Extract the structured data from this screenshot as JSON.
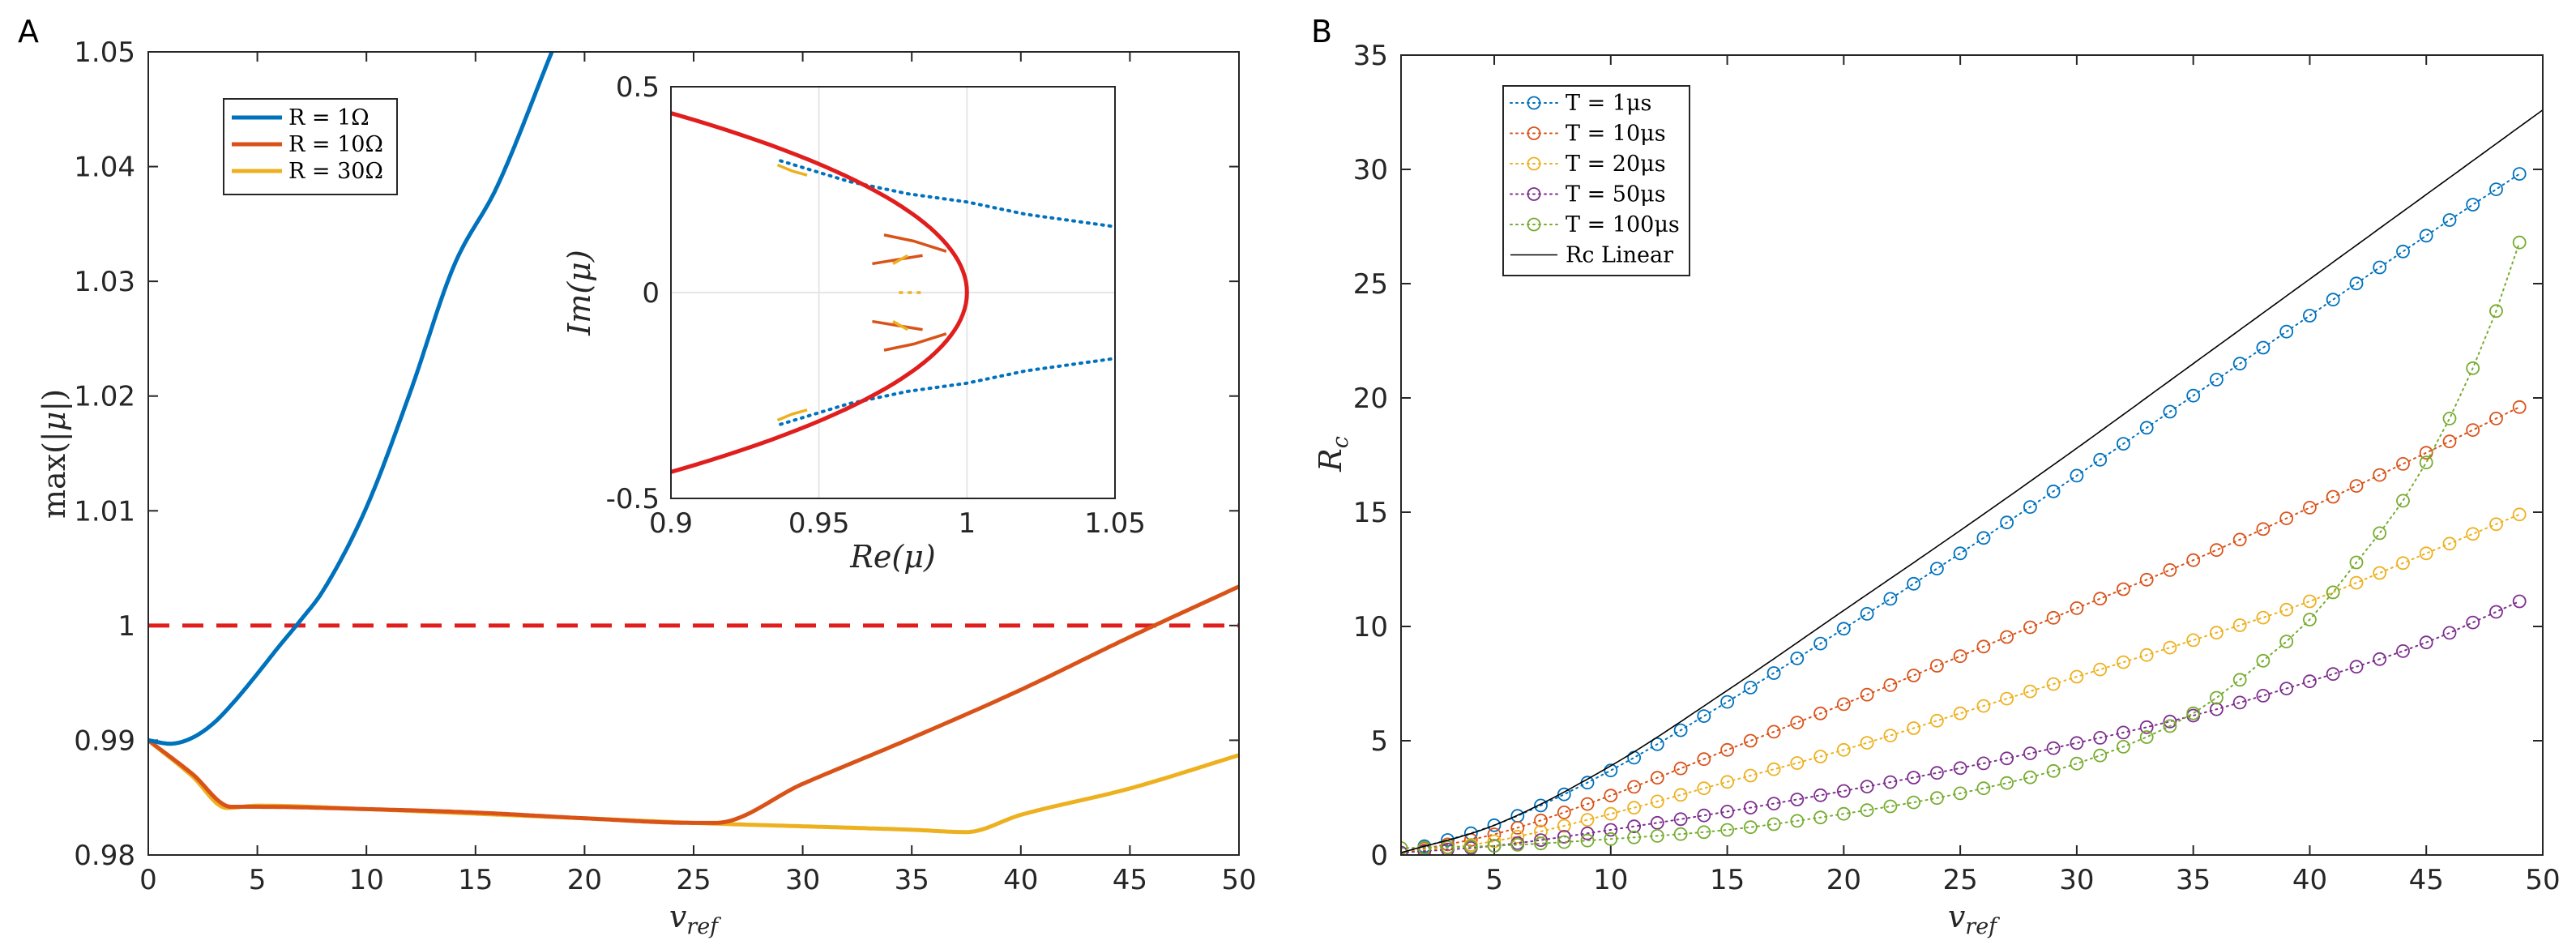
{
  "chart_data": [
    {
      "panel": "A",
      "type": "line",
      "xlabel": "v_ref",
      "ylabel": "max(|μ|)",
      "xlim": [
        0,
        50
      ],
      "ylim": [
        0.98,
        1.05
      ],
      "xticks": [
        "0",
        "5",
        "10",
        "15",
        "20",
        "25",
        "30",
        "35",
        "40",
        "45",
        "50"
      ],
      "yticks": [
        "0.98",
        "0.99",
        "1",
        "1.01",
        "1.02",
        "1.03",
        "1.04",
        "1.05"
      ],
      "threshold": {
        "y": 1.0,
        "color": "#e01e1e",
        "style": "dashed"
      },
      "legend": {
        "placement": "top-left",
        "entries": [
          "R = 1Ω",
          "R = 10Ω",
          "R = 30Ω"
        ]
      },
      "series": [
        {
          "name": "R = 1Ω",
          "color": "#0072bd",
          "x": [
            0,
            1,
            2,
            3,
            4,
            5,
            6,
            7,
            8,
            10,
            12,
            14,
            16,
            18.5
          ],
          "y": [
            0.99,
            0.9897,
            0.9902,
            0.9915,
            0.9935,
            0.9958,
            0.9982,
            1.0005,
            1.003,
            1.0103,
            1.0203,
            1.0313,
            1.0383,
            1.05
          ]
        },
        {
          "name": "R = 10Ω",
          "color": "#d95319",
          "x": [
            0,
            2,
            3.8,
            5,
            10,
            15,
            20,
            25,
            26,
            30,
            35,
            40,
            45,
            50
          ],
          "y": [
            0.99,
            0.9871,
            0.9842,
            0.9842,
            0.984,
            0.9837,
            0.9832,
            0.9828,
            0.9828,
            0.9862,
            0.9902,
            0.9944,
            0.999,
            1.0034
          ]
        },
        {
          "name": "R = 30Ω",
          "color": "#edb120",
          "x": [
            0,
            2,
            3.6,
            5,
            10,
            15,
            20,
            25,
            30,
            35,
            37.5,
            40,
            45,
            50
          ],
          "y": [
            0.99,
            0.9869,
            0.9841,
            0.9843,
            0.984,
            0.9836,
            0.9832,
            0.9828,
            0.9825,
            0.9822,
            0.982,
            0.9835,
            0.9858,
            0.9887
          ]
        }
      ],
      "inset": {
        "xlabel": "Re(μ)",
        "ylabel": "Im(μ)",
        "xlim": [
          0.9,
          1.05
        ],
        "ylim": [
          -0.5,
          0.5
        ],
        "xticks": [
          "0.9",
          "0.95",
          "1",
          "1.05"
        ],
        "yticks": [
          "-0.5",
          "0",
          "0.5"
        ],
        "unit_circle": {
          "color": "#e01e1e"
        },
        "branches": [
          {
            "name": "R = 1Ω",
            "color": "#0072bd",
            "style": "dotted",
            "x": [
              0.937,
              0.96,
              0.98,
              1.0,
              1.02,
              1.05
            ],
            "y": [
              0.32,
              0.27,
              0.24,
              0.22,
              0.19,
              0.16
            ]
          },
          {
            "name": "R = 10Ω",
            "color": "#d95319",
            "style": "solid",
            "x": [
              0.972,
              0.982,
              0.993
            ],
            "y": [
              0.14,
              0.125,
              0.1
            ]
          },
          {
            "name": "R = 30Ω",
            "color": "#edb120",
            "style": "solid",
            "x": [
              0.936,
              0.941,
              0.946
            ],
            "y": [
              0.31,
              0.295,
              0.285
            ]
          }
        ]
      }
    },
    {
      "panel": "B",
      "type": "line",
      "xlabel": "v_ref",
      "ylabel": "R_c",
      "xlim": [
        1,
        50
      ],
      "ylim": [
        0,
        35
      ],
      "xticks": [
        "5",
        "10",
        "15",
        "20",
        "25",
        "30",
        "35",
        "40",
        "45",
        "50"
      ],
      "yticks": [
        "0",
        "5",
        "10",
        "15",
        "20",
        "25",
        "30",
        "35"
      ],
      "legend": {
        "placement": "top-left",
        "entries": [
          "T = 1μs",
          "T = 10μs",
          "T = 20μs",
          "T = 50μs",
          "T = 100μs",
          "Rc Linear"
        ]
      },
      "series": [
        {
          "name": "T = 1μs",
          "color": "#0072bd",
          "style": "dotted-circle",
          "x": [
            1,
            5,
            10,
            15,
            20,
            25,
            30,
            35,
            40,
            45,
            49
          ],
          "y": [
            0.1,
            1.3,
            3.7,
            6.7,
            9.9,
            13.2,
            16.6,
            20.1,
            23.6,
            27.1,
            29.8
          ]
        },
        {
          "name": "T = 10μs",
          "color": "#d95319",
          "style": "dotted-circle",
          "x": [
            1,
            5,
            10,
            15,
            20,
            25,
            30,
            35,
            40,
            45,
            49
          ],
          "y": [
            0.1,
            0.9,
            2.6,
            4.6,
            6.6,
            8.7,
            10.8,
            12.9,
            15.2,
            17.6,
            19.6
          ]
        },
        {
          "name": "T = 20μs",
          "color": "#edb120",
          "style": "dotted-circle",
          "x": [
            1,
            5,
            10,
            15,
            20,
            25,
            30,
            35,
            40,
            45,
            49
          ],
          "y": [
            0.1,
            0.6,
            1.8,
            3.2,
            4.6,
            6.2,
            7.8,
            9.4,
            11.1,
            13.2,
            14.9
          ]
        },
        {
          "name": "T = 50μs",
          "color": "#7e2f8e",
          "style": "dotted-circle",
          "x": [
            1,
            5,
            10,
            15,
            20,
            25,
            30,
            35,
            40,
            45,
            49
          ],
          "y": [
            0.1,
            0.4,
            1.1,
            1.9,
            2.8,
            3.8,
            4.9,
            6.1,
            7.6,
            9.3,
            11.1
          ]
        },
        {
          "name": "T = 100μs",
          "color": "#77ac30",
          "style": "dotted-circle",
          "x": [
            1,
            5,
            10,
            15,
            20,
            25,
            30,
            35,
            38,
            40,
            42,
            44,
            46,
            48,
            49
          ],
          "y": [
            0.3,
            0.4,
            0.7,
            1.1,
            1.8,
            2.7,
            4.0,
            6.2,
            8.5,
            10.3,
            12.8,
            15.5,
            19.1,
            23.8,
            26.8
          ]
        },
        {
          "name": "Rc Linear",
          "color": "#000000",
          "style": "solid",
          "x": [
            1,
            5,
            10,
            15,
            20,
            25,
            30,
            35,
            40,
            45,
            50
          ],
          "y": [
            0.1,
            1.3,
            3.9,
            7.2,
            10.7,
            14.2,
            17.8,
            21.5,
            25.2,
            28.9,
            32.6
          ]
        }
      ]
    }
  ]
}
